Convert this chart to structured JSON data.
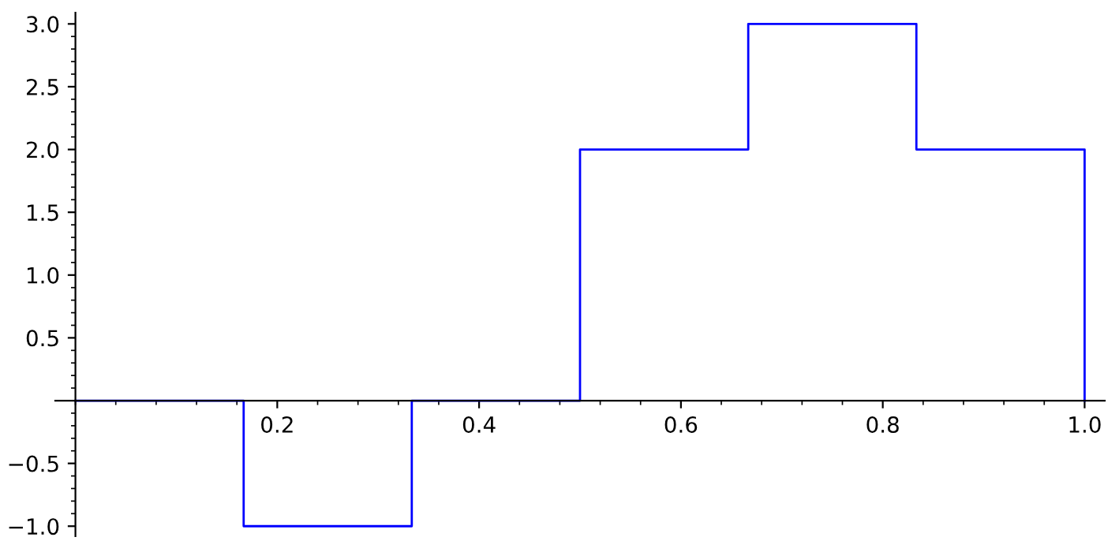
{
  "chart_data": {
    "type": "step",
    "x": [
      0,
      0.1667,
      0.3333,
      0.5,
      0.6667,
      0.8333,
      1.0
    ],
    "series": [
      {
        "color": "#0000ff",
        "values": [
          0,
          -1,
          0,
          2,
          3,
          2,
          0
        ]
      }
    ],
    "xlim": [
      -0.02,
      1.02
    ],
    "ylim": [
      -1.08,
      3.09
    ],
    "xticks": [
      {
        "value": 0.2,
        "label": "0.2"
      },
      {
        "value": 0.4,
        "label": "0.4"
      },
      {
        "value": 0.6,
        "label": "0.6"
      },
      {
        "value": 0.8,
        "label": "0.8"
      },
      {
        "value": 1.0,
        "label": "1.0"
      }
    ],
    "yticks": [
      {
        "value": -1.0,
        "label": "−1.0"
      },
      {
        "value": -0.5,
        "label": "−0.5"
      },
      {
        "value": 0.5,
        "label": "0.5"
      },
      {
        "value": 1.0,
        "label": "1.0"
      },
      {
        "value": 1.5,
        "label": "1.5"
      },
      {
        "value": 2.0,
        "label": "2.0"
      },
      {
        "value": 2.5,
        "label": "2.5"
      },
      {
        "value": 3.0,
        "label": "3.0"
      }
    ],
    "grid": false
  }
}
